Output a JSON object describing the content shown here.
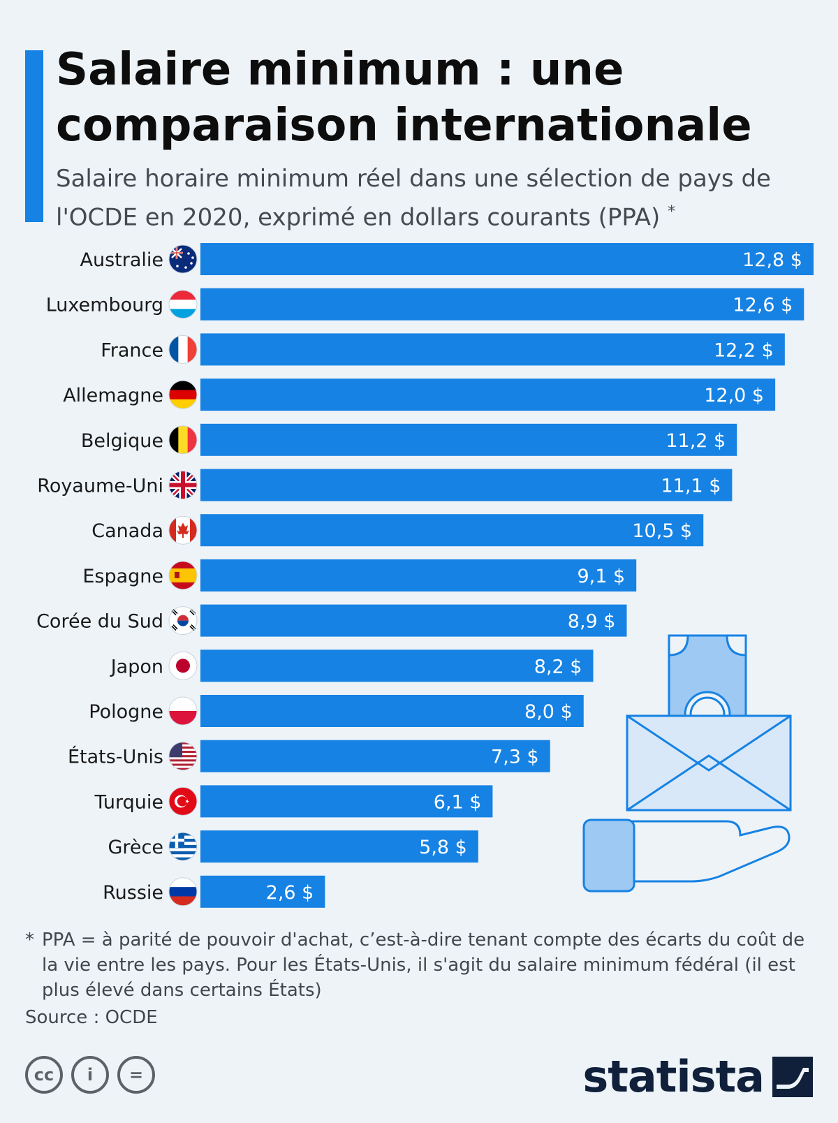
{
  "header": {
    "title": "Salaire minimum : une comparaison internationale",
    "subtitle": "Salaire horaire minimum réel dans une sélection de pays de l'OCDE en 2020, exprimé en dollars courants (PPA)",
    "subtitle_marker": "*"
  },
  "chart_data": {
    "type": "bar",
    "orientation": "horizontal",
    "title": "Salaire minimum : une comparaison internationale",
    "categories": [
      "Australie",
      "Luxembourg",
      "France",
      "Allemagne",
      "Belgique",
      "Royaume-Uni",
      "Canada",
      "Espagne",
      "Corée du Sud",
      "Japon",
      "Pologne",
      "États-Unis",
      "Turquie",
      "Grèce",
      "Russie"
    ],
    "values": [
      12.8,
      12.6,
      12.2,
      12.0,
      11.2,
      11.1,
      10.5,
      9.1,
      8.9,
      8.2,
      8.0,
      7.3,
      6.1,
      5.8,
      2.6
    ],
    "value_labels": [
      "12,8 $",
      "12,6 $",
      "12,2 $",
      "12,0 $",
      "11,2 $",
      "11,1 $",
      "10,5 $",
      "9,1 $",
      "8,9 $",
      "8,2 $",
      "8,0 $",
      "7,3 $",
      "6,1 $",
      "5,8 $",
      "2,6 $"
    ],
    "flag_icons": [
      "australia-flag-icon",
      "luxembourg-flag-icon",
      "france-flag-icon",
      "germany-flag-icon",
      "belgium-flag-icon",
      "uk-flag-icon",
      "canada-flag-icon",
      "spain-flag-icon",
      "south-korea-flag-icon",
      "japan-flag-icon",
      "poland-flag-icon",
      "usa-flag-icon",
      "turkey-flag-icon",
      "greece-flag-icon",
      "russia-flag-icon"
    ],
    "xlim": [
      0,
      12.8
    ],
    "grid": false,
    "legend": "none",
    "bar_color": "#1682e3"
  },
  "illustration": {
    "name": "money-envelope-hand-icon",
    "color": "#1682e3"
  },
  "footnote": {
    "marker": "*",
    "text": "PPA = à parité de pouvoir d'achat, c’est-à-dire tenant compte des écarts du coût de la vie entre les pays. Pour les États-Unis, il s'agit du salaire minimum fédéral (il est plus élevé dans certains États)"
  },
  "source": "Source : OCDE",
  "license_icons": [
    "cc-icon",
    "attribution-icon",
    "no-derivatives-icon"
  ],
  "license_glyphs": [
    "cc",
    "i",
    "="
  ],
  "brand": {
    "name": "statista",
    "icon": "statista-logo-icon"
  },
  "colors": {
    "accent": "#1682e3",
    "background": "#eef3f8",
    "brand_dark": "#10203b"
  }
}
